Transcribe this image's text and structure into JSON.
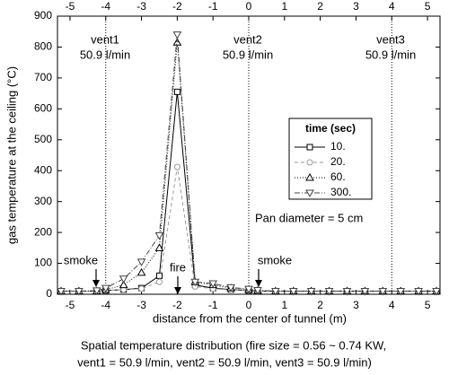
{
  "chart_data": {
    "type": "line",
    "xlabel": "distance from the center of tunnel (m)",
    "ylabel": "gas temperature at the ceiling (°C)",
    "caption": [
      "Spatial temperature distribution (fire size = 0.56 ~ 0.74 KW,",
      "vent1 = 50.9 l/min,  vent2 = 50.9 l/min, vent3 = 50.9 l/min)"
    ],
    "x": [
      -5.25,
      -4.75,
      -4.25,
      -4,
      -3.5,
      -3,
      -2.5,
      -2,
      -1.5,
      -1,
      -0.5,
      0,
      0.25,
      0.75,
      1.25,
      1.75,
      2.25,
      2.75,
      3.25,
      3.75,
      4.25,
      4.75,
      5.25
    ],
    "series": [
      {
        "name": "10.",
        "color": "#000000",
        "dash": "",
        "marker": "square",
        "values": [
          10,
          10,
          10,
          12,
          15,
          20,
          60,
          655,
          30,
          20,
          15,
          12,
          10,
          10,
          10,
          10,
          10,
          10,
          10,
          10,
          10,
          10,
          10
        ]
      },
      {
        "name": "20.",
        "color": "#999999",
        "dash": "4 3",
        "marker": "circle",
        "values": [
          10,
          10,
          10,
          12,
          15,
          18,
          40,
          412,
          25,
          18,
          14,
          12,
          10,
          10,
          10,
          10,
          10,
          10,
          10,
          10,
          10,
          10,
          10
        ]
      },
      {
        "name": "60.",
        "color": "#000000",
        "dash": "1 2",
        "marker": "triangle",
        "values": [
          10,
          10,
          10,
          15,
          30,
          70,
          150,
          815,
          40,
          30,
          20,
          15,
          12,
          10,
          10,
          10,
          10,
          10,
          10,
          10,
          10,
          10,
          10
        ]
      },
      {
        "name": "300.",
        "color": "#444444",
        "dash": "6 2 1 2",
        "marker": "triangle-down",
        "values": [
          10,
          10,
          12,
          20,
          50,
          105,
          190,
          840,
          40,
          35,
          22,
          17,
          13,
          10,
          10,
          10,
          10,
          10,
          10,
          10,
          10,
          10,
          10
        ]
      }
    ],
    "legend_title": "time (sec)",
    "xlim": [
      -5.35,
      5.35
    ],
    "xticks": [
      -5,
      -4,
      -3,
      -2,
      -1,
      0,
      1,
      2,
      3,
      4,
      5
    ],
    "ylim": [
      0,
      900
    ],
    "yticks": [
      0,
      100,
      200,
      300,
      400,
      500,
      600,
      700,
      800,
      900
    ],
    "reference_lines": [
      -4,
      0,
      4
    ],
    "annotations": [
      "vent1",
      "50.9 l/min",
      "vent2",
      "50.9 l/min",
      "vent3",
      "50.9 l/min",
      "Pan diameter = 5 cm",
      "smoke",
      "fire",
      "smoke"
    ]
  }
}
